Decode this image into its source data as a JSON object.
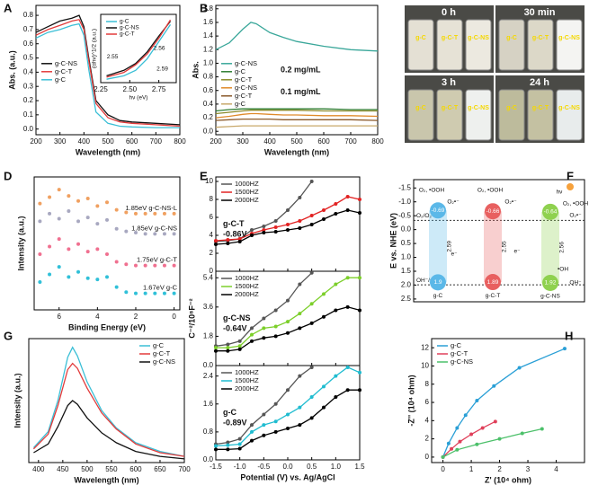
{
  "chart_data": [
    {
      "type": "line",
      "panel": "A",
      "xlabel": "Wavelength (nm)",
      "ylabel": "Abs. (a.u.)",
      "legend": "center left",
      "x": [
        200,
        250,
        300,
        350,
        380,
        400,
        420,
        450,
        500,
        550,
        600,
        700,
        800
      ],
      "xlim": [
        200,
        800
      ],
      "xticks": [
        200,
        300,
        400,
        500,
        600,
        700,
        800
      ],
      "ylim": [
        -0.04,
        0.87
      ],
      "yticks": [
        {
          "value": 0,
          "label": "0.0"
        },
        0.1,
        0.2,
        0.3,
        0.4,
        0.5,
        0.6,
        0.7,
        0.8
      ],
      "series": [
        {
          "name": "g-C-NS",
          "color": "#111111",
          "values": [
            0.68,
            0.72,
            0.76,
            0.78,
            0.8,
            0.72,
            0.5,
            0.2,
            0.1,
            0.06,
            0.05,
            0.04,
            0.03
          ]
        },
        {
          "name": "g-C-T",
          "color": "#e23b3b",
          "values": [
            0.66,
            0.7,
            0.73,
            0.76,
            0.77,
            0.7,
            0.48,
            0.18,
            0.08,
            0.05,
            0.04,
            0.03,
            0.02
          ]
        },
        {
          "name": "g-C",
          "color": "#3bbfd6",
          "values": [
            0.64,
            0.68,
            0.7,
            0.73,
            0.74,
            0.66,
            0.42,
            0.12,
            0.04,
            0.02,
            0.015,
            0.01,
            0.01
          ]
        }
      ]
    },
    {
      "type": "line",
      "xlabel": "hν (eV)",
      "ylabel": "(αhν)^1/2 (a.u.)",
      "legend": "upper left",
      "x": [
        2.3,
        2.45,
        2.55,
        2.65,
        2.75,
        2.85
      ],
      "xlim": [
        2.25,
        2.9
      ],
      "xticks": [
        2.25,
        {
          "value": 2.5,
          "label": "2.50"
        },
        2.75
      ],
      "ylim": [
        0,
        10
      ],
      "annotations": [
        "2.55",
        "2.56",
        "2.59"
      ],
      "series": [
        {
          "name": "g-C",
          "color": "#3bbfd6",
          "values": [
            0.5,
            1,
            1.8,
            3.5,
            6,
            8.5
          ]
        },
        {
          "name": "g-C-NS",
          "color": "#111111",
          "values": [
            1,
            1.8,
            2.8,
            4.5,
            6.8,
            9
          ]
        },
        {
          "name": "g-C-T",
          "color": "#e23b3b",
          "values": [
            0.8,
            1.5,
            2.6,
            4.2,
            6.5,
            9.2
          ]
        }
      ]
    },
    {
      "type": "line",
      "panel": "B",
      "xlabel": "Wavelength (nm)",
      "ylabel": "Abs.",
      "legend": "center left",
      "x": [
        200,
        250,
        300,
        330,
        350,
        400,
        450,
        500,
        600,
        700,
        800
      ],
      "xlim": [
        200,
        800
      ],
      "xticks": [
        200,
        300,
        400,
        500,
        600,
        700,
        800
      ],
      "ylim": [
        -0.05,
        1.85
      ],
      "yticks": [
        {
          "value": 0,
          "label": "0.0"
        },
        0.2,
        0.4,
        0.6,
        0.8,
        {
          "value": 1,
          "label": "1.0"
        },
        1.2,
        1.4,
        1.6,
        1.8
      ],
      "annotations": [
        "0.2 mg/mL",
        "0.1 mg/mL"
      ],
      "series": [
        {
          "name": "g-C-NS",
          "color": "#3aa79a",
          "values": [
            1.2,
            1.3,
            1.5,
            1.6,
            1.58,
            1.45,
            1.38,
            1.32,
            1.25,
            1.2,
            1.18
          ]
        },
        {
          "name": "g-C",
          "color": "#2e7d32",
          "values": [
            0.3,
            0.32,
            0.33,
            0.33,
            0.33,
            0.33,
            0.33,
            0.33,
            0.33,
            0.32,
            0.32
          ]
        },
        {
          "name": "g-C-T",
          "color": "#8a8a2a",
          "values": [
            0.26,
            0.28,
            0.3,
            0.31,
            0.31,
            0.31,
            0.31,
            0.31,
            0.3,
            0.3,
            0.3
          ]
        },
        {
          "name": "g-C-NS",
          "color": "#e08a2a",
          "values": [
            0.2,
            0.22,
            0.25,
            0.26,
            0.26,
            0.25,
            0.24,
            0.24,
            0.23,
            0.23,
            0.22
          ]
        },
        {
          "name": "g-C-T",
          "color": "#8b5a2b",
          "values": [
            0.16,
            0.17,
            0.18,
            0.18,
            0.18,
            0.18,
            0.17,
            0.17,
            0.17,
            0.17,
            0.16
          ]
        },
        {
          "name": "g-C",
          "color": "#c8a86a",
          "values": [
            0.06,
            0.07,
            0.08,
            0.08,
            0.08,
            0.08,
            0.08,
            0.08,
            0.08,
            0.08,
            0.08
          ]
        }
      ]
    },
    {
      "type": "scatter",
      "panel": "D",
      "xlabel": "Binding Energy (eV)",
      "ylabel": "Intensity (a.u.)",
      "legend": "inline",
      "x": [
        7,
        6.5,
        6,
        5.5,
        5,
        4.5,
        4,
        3.5,
        3,
        2.5,
        2,
        1.5,
        1,
        0.5,
        0
      ],
      "xlim": [
        7.3,
        -0.3
      ],
      "xticks": [
        6,
        4,
        2,
        0
      ],
      "ylim": [
        0,
        10.5
      ],
      "series": [
        {
          "name": "1.85eV g-C-NS-L",
          "color": "#f0a060",
          "values": [
            8.4,
            8.9,
            9.5,
            9.0,
            8.6,
            8.8,
            8.2,
            8.5,
            7.9,
            7.7,
            7.6,
            7.6,
            7.6,
            7.6,
            7.6
          ]
        },
        {
          "name": "1.85eV g-C-NS",
          "color": "#a8a8c0",
          "values": [
            7.0,
            7.6,
            7.2,
            7.8,
            7.0,
            7.3,
            6.8,
            7.1,
            6.4,
            6.2,
            6.1,
            6.0,
            6.0,
            6.0,
            6.0
          ]
        },
        {
          "name": "1.75eV g-C-T",
          "color": "#f07090",
          "values": [
            4.4,
            5.0,
            5.6,
            4.8,
            5.2,
            4.6,
            4.8,
            4.4,
            3.8,
            3.6,
            3.5,
            3.5,
            3.5,
            3.5,
            3.5
          ]
        },
        {
          "name": "1.67eV g-C",
          "color": "#30c0d8",
          "values": [
            2.2,
            2.8,
            3.4,
            2.6,
            3.0,
            2.5,
            2.4,
            2.6,
            1.8,
            1.4,
            1.3,
            1.3,
            1.3,
            1.3,
            1.3
          ]
        }
      ]
    },
    {
      "type": "multi-line",
      "panel": "E",
      "xlabel": "Potential (V) vs. Ag/AgCl",
      "ylabel": "C⁻²/10⁸F⁻²",
      "legend": "upper left",
      "x": [
        -1.5,
        -1.25,
        -1,
        -0.75,
        -0.5,
        -0.25,
        0,
        0.25,
        0.5,
        0.75,
        1,
        1.25,
        1.5
      ],
      "xlim": [
        -1.5,
        1.5
      ],
      "xticks": [
        -1.5,
        {
          "value": -1,
          "label": "-1.0"
        },
        -0.5,
        {
          "value": 0,
          "label": "0.0"
        },
        0.5,
        {
          "value": 1,
          "label": "1.0"
        },
        1.5
      ],
      "panels": [
        {
          "ylim": [
            0,
            10.5
          ],
          "yticks": [
            0,
            2,
            4,
            6,
            8,
            10
          ],
          "annotations": [
            "g-C-T",
            "-0.86V"
          ],
          "series": [
            {
              "name": "1000HZ",
              "color": "#555555",
              "values": [
                3.3,
                3.4,
                3.6,
                4.6,
                5.0,
                5.6,
                6.8,
                8.2,
                10.0,
                null,
                null,
                null,
                null
              ]
            },
            {
              "name": "1500HZ",
              "color": "#e22222",
              "values": [
                3.4,
                3.5,
                3.6,
                4.2,
                4.6,
                4.9,
                5.2,
                5.6,
                6.2,
                6.8,
                7.5,
                8.3,
                8.0
              ]
            },
            {
              "name": "2000HZ",
              "color": "#000000",
              "values": [
                3.0,
                3.1,
                3.3,
                4.0,
                4.3,
                4.4,
                4.6,
                4.8,
                5.2,
                5.8,
                6.4,
                6.8,
                6.5
              ]
            }
          ]
        },
        {
          "ylim": [
            0,
            5.8
          ],
          "yticks": [
            {
              "value": 0,
              "label": "0.0"
            },
            1.8,
            3.6,
            5.4
          ],
          "annotations": [
            "g-C-NS",
            "-0.64V"
          ],
          "series": [
            {
              "name": "1000HZ",
              "color": "#555555",
              "values": [
                1.2,
                1.3,
                1.5,
                2.3,
                2.9,
                3.4,
                4.0,
                5.0,
                5.7,
                null,
                null,
                null,
                null
              ]
            },
            {
              "name": "1500HZ",
              "color": "#7ccf2a",
              "values": [
                1.1,
                1.1,
                1.2,
                1.9,
                2.3,
                2.4,
                2.7,
                3.2,
                3.8,
                4.4,
                5.0,
                5.4,
                5.4
              ]
            },
            {
              "name": "2000HZ",
              "color": "#000000",
              "values": [
                0.9,
                0.9,
                1.0,
                1.5,
                1.7,
                1.8,
                2.0,
                2.3,
                2.6,
                3.0,
                3.4,
                3.6,
                3.4
              ]
            }
          ]
        },
        {
          "ylim": [
            0,
            2.7
          ],
          "yticks": [
            {
              "value": 0,
              "label": "0.0"
            },
            0.8,
            1.6,
            2.4
          ],
          "annotations": [
            "g-C",
            "-0.89V"
          ],
          "series": [
            {
              "name": "1000HZ",
              "color": "#555555",
              "values": [
                0.45,
                0.5,
                0.6,
                1.0,
                1.3,
                1.6,
                2.0,
                2.4,
                2.65,
                null,
                null,
                null,
                null
              ]
            },
            {
              "name": "1500HZ",
              "color": "#1fbcd0",
              "values": [
                0.4,
                0.42,
                0.45,
                0.8,
                1.0,
                1.1,
                1.3,
                1.5,
                1.8,
                2.1,
                2.4,
                2.65,
                2.5
              ]
            },
            {
              "name": "2000HZ",
              "color": "#000000",
              "values": [
                0.3,
                0.3,
                0.32,
                0.55,
                0.7,
                0.8,
                0.9,
                1.0,
                1.2,
                1.5,
                1.8,
                2.0,
                2.0
              ]
            }
          ]
        }
      ]
    },
    {
      "type": "line",
      "panel": "G",
      "xlabel": "Wavelength (nm)",
      "ylabel": "Intensity (a.u.)",
      "legend": "upper right",
      "x": [
        390,
        420,
        440,
        460,
        470,
        480,
        500,
        530,
        560,
        600,
        650,
        700
      ],
      "xlim": [
        380,
        700
      ],
      "xticks": [
        400,
        450,
        500,
        550,
        600,
        650,
        700
      ],
      "ylim": [
        0,
        10
      ],
      "series": [
        {
          "name": "g-C",
          "color": "#3bbfd6",
          "values": [
            1.2,
            2.5,
            5,
            8.5,
            9.3,
            8.6,
            6.5,
            4.2,
            2.8,
            1.6,
            0.9,
            0.5
          ]
        },
        {
          "name": "g-C-T",
          "color": "#e23b3b",
          "values": [
            1.1,
            2.3,
            4.6,
            7.5,
            8.0,
            7.6,
            6.0,
            4.0,
            2.7,
            1.5,
            0.8,
            0.5
          ]
        },
        {
          "name": "g-C-NS",
          "color": "#111111",
          "values": [
            0.8,
            1.5,
            2.9,
            4.6,
            5.0,
            4.7,
            3.6,
            2.4,
            1.6,
            0.9,
            0.5,
            0.3
          ]
        }
      ]
    },
    {
      "type": "line-markers",
      "panel": "H",
      "xlabel": "Z' (10⁴ ohm)",
      "ylabel": "-Z'' (10⁴ ohm)",
      "legend": "upper left",
      "xlim": [
        -0.4,
        5
      ],
      "xticks": [
        0,
        1,
        2,
        3,
        4
      ],
      "ylim": [
        -0.6,
        13
      ],
      "yticks": [
        0,
        2,
        4,
        6,
        8,
        10,
        12
      ],
      "series": [
        {
          "name": "g-C",
          "color": "#2a9fd6",
          "x": [
            0,
            0.2,
            0.5,
            0.8,
            1.2,
            1.8,
            2.7,
            4.3
          ],
          "values": [
            0,
            1.5,
            3.2,
            4.6,
            6.2,
            7.8,
            9.8,
            11.9
          ]
        },
        {
          "name": "g-C-T",
          "color": "#e0405a",
          "x": [
            0,
            0.3,
            0.6,
            1.0,
            1.4,
            1.85
          ],
          "values": [
            0,
            0.9,
            1.7,
            2.5,
            3.2,
            3.9
          ]
        },
        {
          "name": "g-C-NS",
          "color": "#4cc06a",
          "x": [
            0,
            0.5,
            1.2,
            2.0,
            2.8,
            3.5
          ],
          "values": [
            0,
            0.8,
            1.4,
            2.0,
            2.6,
            3.1
          ]
        }
      ]
    }
  ],
  "photo": {
    "panel": "C",
    "groups": [
      {
        "time": "0 h",
        "vials": [
          "g-C",
          "g-C-T",
          "g-C-NS"
        ]
      },
      {
        "time": "30 min",
        "vials": [
          "g-C",
          "g-C-T",
          "g-C-NS"
        ]
      },
      {
        "time": "3 h",
        "vials": [
          "g-C",
          "g-C-T",
          "g-C-NS"
        ]
      },
      {
        "time": "24 h",
        "vials": [
          "g-C",
          "g-C-T",
          "g-C-NS"
        ]
      }
    ]
  },
  "diagram": {
    "panel": "F",
    "ylabel": "E vs. NHE (eV)",
    "ylim": [
      -1.8,
      2.6
    ],
    "yticks": [
      -1.5,
      {
        "value": -1,
        "label": "-1.0"
      },
      -0.5,
      {
        "value": 0,
        "label": "0.0"
      },
      0.5,
      {
        "value": 1,
        "label": "1.0"
      },
      1.5,
      {
        "value": 2,
        "label": "2.0"
      },
      2.5
    ],
    "bands": [
      {
        "name": "g-C",
        "color": "#5bb8e8",
        "cb": -0.69,
        "vb": 1.9,
        "gap": 2.59
      },
      {
        "name": "g-C-T",
        "color": "#e86060",
        "cb": -0.66,
        "vb": 1.89,
        "gap": 2.55
      },
      {
        "name": "g-C-NS",
        "color": "#8fd14f",
        "cb": -0.64,
        "vb": 1.92,
        "gap": 2.56
      }
    ],
    "redox": [
      {
        "label": "O₂/O₂•⁻",
        "value": -0.33
      },
      {
        "label": "OH⁻/•OH",
        "value": 1.99
      }
    ],
    "notes": [
      "O₂, •OOH",
      "O₂•⁻",
      "O₂, •OOH",
      "O₂•⁻",
      "hν",
      "O₂, •OOH",
      "O₂•⁻",
      "•OH",
      "OH⁻",
      "e⁻",
      "e⁻"
    ]
  }
}
